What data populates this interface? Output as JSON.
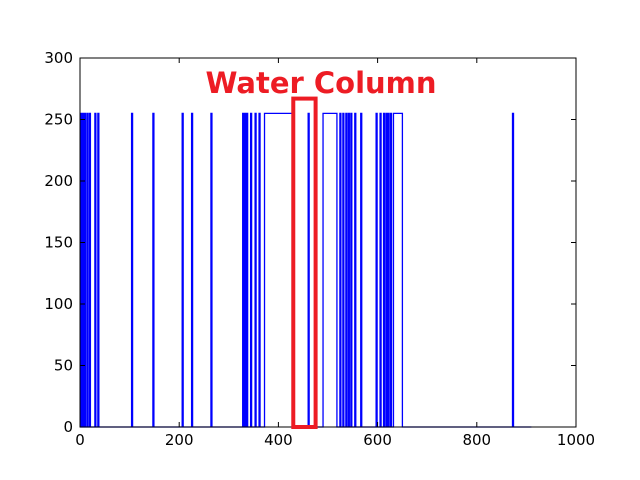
{
  "chart_data": {
    "type": "line",
    "title": "",
    "xlabel": "",
    "ylabel": "",
    "xlim": [
      0,
      1000
    ],
    "ylim": [
      0,
      300
    ],
    "x_ticks": [
      0,
      200,
      400,
      600,
      800,
      1000
    ],
    "y_ticks": [
      0,
      50,
      100,
      150,
      200,
      250,
      300
    ],
    "x_tick_labels": [
      "0",
      "200",
      "400",
      "600",
      "800",
      "1000"
    ],
    "y_tick_labels": [
      "0",
      "50",
      "100",
      "150",
      "200",
      "250",
      "300"
    ],
    "grid": false,
    "legend": "none",
    "series": [
      {
        "color": "#0000ff",
        "high_value": 255,
        "low_value": 0,
        "x_end": 910,
        "high_intervals": [
          [
            1,
            3
          ],
          [
            5,
            7
          ],
          [
            9,
            11
          ],
          [
            14,
            16
          ],
          [
            19,
            21
          ],
          [
            30,
            32
          ],
          [
            36,
            38
          ],
          [
            104,
            106
          ],
          [
            147,
            149
          ],
          [
            206,
            208
          ],
          [
            225,
            227
          ],
          [
            264,
            266
          ],
          [
            328,
            330
          ],
          [
            332,
            334
          ],
          [
            336,
            338
          ],
          [
            344,
            346
          ],
          [
            353,
            355
          ],
          [
            361,
            363
          ],
          [
            372,
            428
          ],
          [
            460,
            462
          ],
          [
            490,
            518
          ],
          [
            524,
            526
          ],
          [
            530,
            532
          ],
          [
            536,
            538
          ],
          [
            541,
            543
          ],
          [
            546,
            548
          ],
          [
            554,
            556
          ],
          [
            566,
            568
          ],
          [
            597,
            599
          ],
          [
            605,
            607
          ],
          [
            612,
            614
          ],
          [
            617,
            619
          ],
          [
            621,
            623
          ],
          [
            626,
            628
          ],
          [
            632,
            650
          ],
          [
            872,
            874
          ]
        ]
      }
    ],
    "annotations": [
      {
        "text": "Water Column",
        "color": "#ed1c24",
        "box_x": [
          430,
          475
        ],
        "box_y": [
          0,
          267
        ]
      }
    ]
  }
}
